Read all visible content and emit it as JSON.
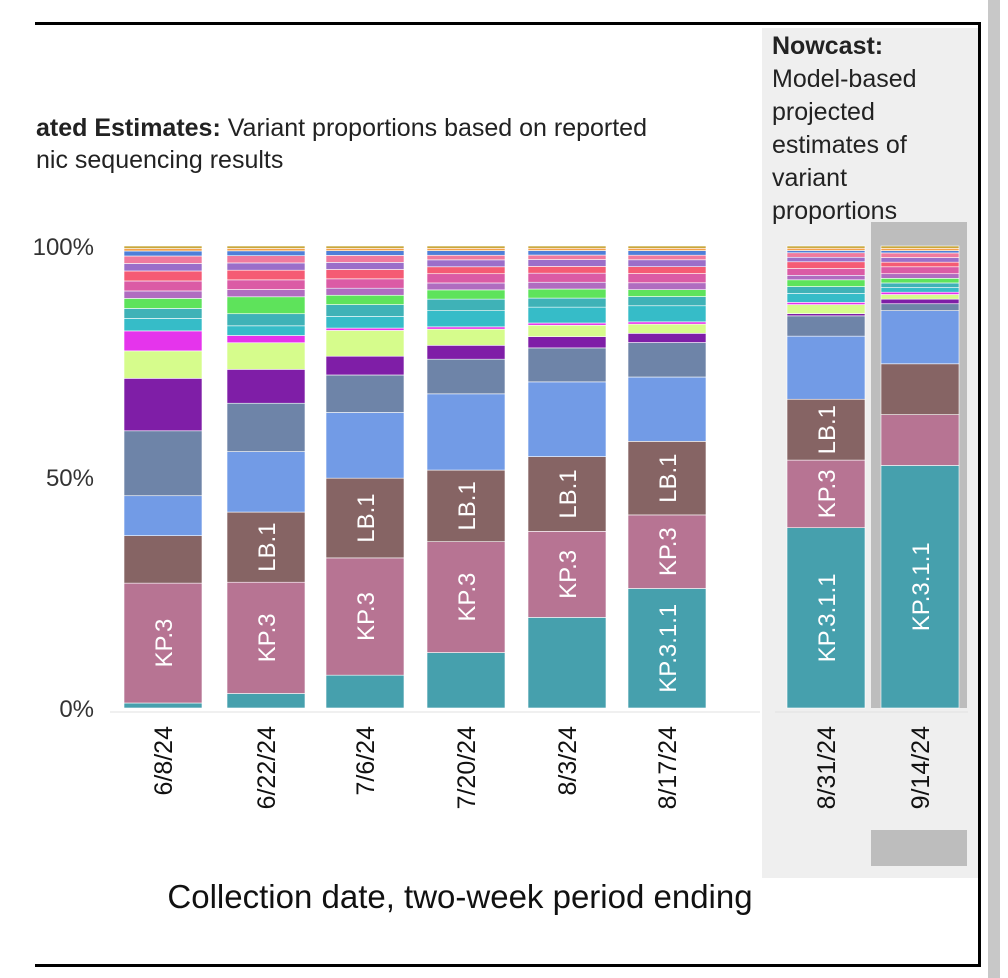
{
  "estimates_header": {
    "bold": "ated Estimates:",
    "line1": " Variant proportions based on reported",
    "line2": "nic sequencing results"
  },
  "nowcast_header": {
    "bold": "Nowcast:",
    "text": "Model-based projected estimates of variant proportions"
  },
  "chart_data": {
    "type": "bar",
    "stacked": true,
    "xlabel": "Collection date, two-week period ending",
    "ylabel": "",
    "ylim": [
      0,
      100
    ],
    "ytick_labels": [
      "100%",
      "50%",
      "0%"
    ],
    "categories": [
      "6/8/24",
      "6/22/24",
      "7/6/24",
      "7/20/24",
      "8/3/24",
      "8/17/24",
      "8/31/24",
      "9/14/24"
    ],
    "nowcast_categories": [
      "8/31/24",
      "9/14/24"
    ],
    "highlighted_category": "9/14/24",
    "series": [
      {
        "label": "KP.3.1.1",
        "color": "#46a0ad",
        "values": [
          1,
          3,
          7,
          12,
          20,
          26,
          40,
          52.5
        ]
      },
      {
        "label": "KP.3",
        "color": "#b77493",
        "values": [
          24,
          23,
          25,
          24,
          19,
          16,
          15,
          11
        ]
      },
      {
        "label": "LB.1",
        "color": "#866464",
        "values": [
          9.5,
          14.5,
          17,
          15.5,
          16.5,
          16,
          13.5,
          11
        ]
      },
      {
        "color": "#729be6",
        "values": [
          8,
          12.5,
          14,
          16.5,
          16.5,
          14,
          14,
          11.5
        ]
      },
      {
        "color": "#6e84a8",
        "values": [
          13,
          10,
          8,
          7.5,
          7.5,
          7.5,
          4.5,
          1.5
        ]
      },
      {
        "color": "#7f1ea7",
        "values": [
          10.5,
          7,
          4,
          3,
          2.5,
          2,
          0.5,
          1
        ]
      },
      {
        "color": "#d6fc8c",
        "values": [
          5.5,
          5.5,
          5.5,
          3.5,
          2.5,
          2,
          2,
          1
        ]
      },
      {
        "color": "#e534ec",
        "values": [
          4,
          1.5,
          0.5,
          0.5,
          0.5,
          0.5,
          0.5,
          0.5
        ]
      },
      {
        "color": "#36bcc8",
        "values": [
          2.5,
          2,
          2.5,
          3.5,
          3.5,
          3.5,
          2,
          1
        ]
      },
      {
        "color": "#3fb2b7",
        "values": [
          2,
          2.5,
          2.5,
          2.5,
          2,
          2,
          1.5,
          1
        ]
      },
      {
        "color": "#5ee35b",
        "values": [
          2,
          3.5,
          2,
          2,
          2,
          1.5,
          1.5,
          1
        ]
      },
      {
        "color": "#b06cc0",
        "values": [
          1.5,
          1.5,
          1.5,
          1.5,
          1.5,
          1.5,
          1,
          1
        ]
      },
      {
        "color": "#db5ba5",
        "values": [
          2,
          2,
          2,
          2,
          2,
          2,
          1.5,
          1.5
        ]
      },
      {
        "color": "#f55b74",
        "values": [
          2,
          2,
          2,
          1.5,
          1.5,
          1.5,
          1.5,
          1
        ]
      },
      {
        "color": "#9b6ec9",
        "values": [
          1.5,
          1.5,
          1.5,
          1.5,
          1.5,
          1.5,
          1,
          1
        ]
      },
      {
        "color": "#f07a9e",
        "values": [
          1.5,
          1.5,
          1.5,
          1,
          1,
          1,
          1,
          1
        ]
      },
      {
        "color": "#4e7fd9",
        "values": [
          1,
          1,
          1,
          1,
          1,
          1,
          0.5,
          0.5
        ]
      },
      {
        "color": "#f4a04a",
        "values": [
          0.5,
          0.5,
          0.5,
          0.5,
          0.5,
          0.5,
          0.5,
          0.5
        ]
      },
      {
        "color": "#c8a83c",
        "values": [
          0.5,
          0.5,
          0.5,
          0.5,
          0.5,
          0.5,
          0.5,
          0.5
        ]
      }
    ],
    "bar_labels": [
      {
        "category": "6/8/24",
        "series": "KP.3"
      },
      {
        "category": "6/22/24",
        "series": "KP.3"
      },
      {
        "category": "6/22/24",
        "series": "LB.1"
      },
      {
        "category": "7/6/24",
        "series": "KP.3"
      },
      {
        "category": "7/6/24",
        "series": "LB.1"
      },
      {
        "category": "7/20/24",
        "series": "KP.3"
      },
      {
        "category": "7/20/24",
        "series": "LB.1"
      },
      {
        "category": "8/3/24",
        "series": "KP.3"
      },
      {
        "category": "8/3/24",
        "series": "LB.1"
      },
      {
        "category": "8/17/24",
        "series": "KP.3.1.1"
      },
      {
        "category": "8/17/24",
        "series": "KP.3"
      },
      {
        "category": "8/17/24",
        "series": "LB.1"
      },
      {
        "category": "8/31/24",
        "series": "KP.3.1.1"
      },
      {
        "category": "8/31/24",
        "series": "KP.3"
      },
      {
        "category": "8/31/24",
        "series": "LB.1"
      },
      {
        "category": "9/14/24",
        "series": "KP.3.1.1"
      }
    ]
  }
}
